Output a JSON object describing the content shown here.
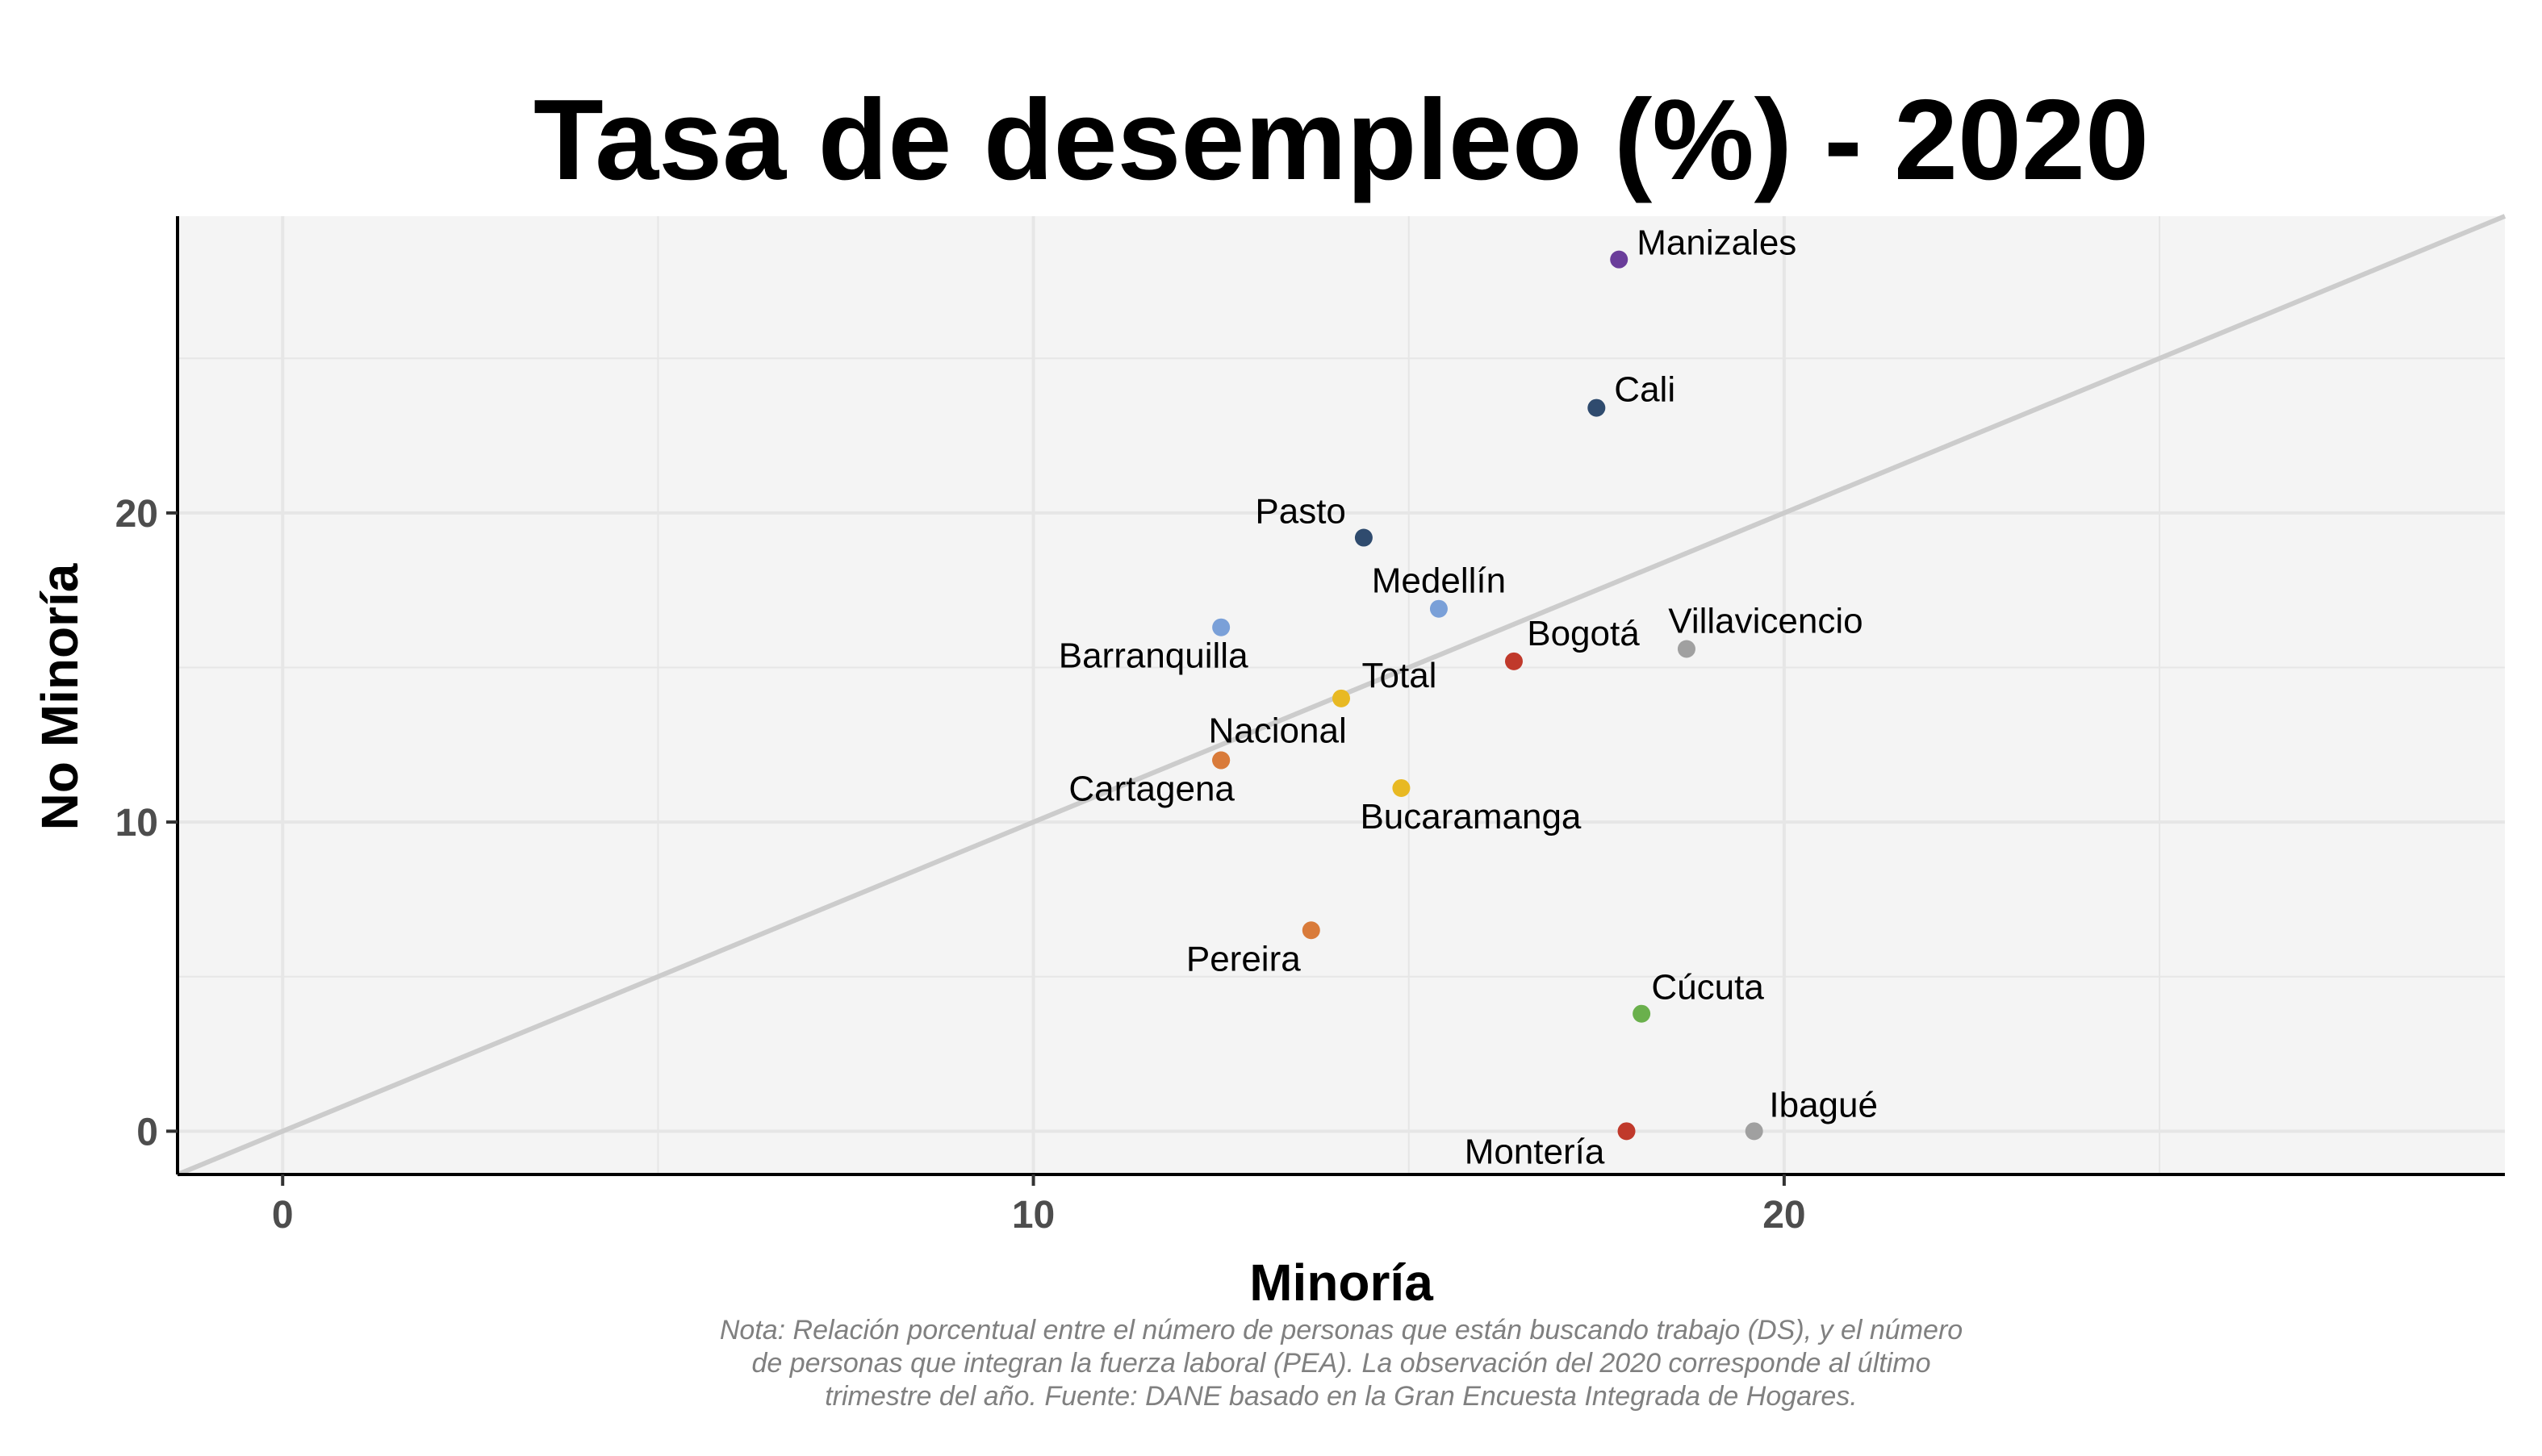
{
  "chart_data": {
    "type": "scatter",
    "title": "Tasa de desempleo (%) - 2020",
    "xlabel": "Minoría",
    "ylabel": "No Minoría",
    "xlim": [
      -1.4,
      29.6
    ],
    "ylim": [
      -1.4,
      29.6
    ],
    "x_ticks": [
      0,
      10,
      20
    ],
    "y_ticks": [
      0,
      10,
      20
    ],
    "grid": true,
    "reference_line": "y = x",
    "colors": {
      "panel_background": "#f4f4f4",
      "grid": "#e6e6e6",
      "reference_line": "#cccccc"
    },
    "points": [
      {
        "label": "Manizales",
        "x": 17.8,
        "y": 28.2,
        "color": "#6a3d9a"
      },
      {
        "label": "Cali",
        "x": 17.5,
        "y": 23.4,
        "color": "#2f4b6e"
      },
      {
        "label": "Pasto",
        "x": 14.4,
        "y": 19.2,
        "color": "#2f4b6e"
      },
      {
        "label": "Medellín",
        "x": 15.4,
        "y": 16.9,
        "color": "#7aa0d8"
      },
      {
        "label": "Barranquilla",
        "x": 12.5,
        "y": 16.3,
        "color": "#7aa0d8"
      },
      {
        "label": "Villavicencio",
        "x": 18.7,
        "y": 15.6,
        "color": "#a0a0a0"
      },
      {
        "label": "Bogotá",
        "x": 16.4,
        "y": 15.2,
        "color": "#c0392b"
      },
      {
        "label": "Total",
        "x": 14.1,
        "y": 14.0,
        "color": "#e8b923"
      },
      {
        "label": "Nacional",
        "x": 12.5,
        "y": 12.0,
        "color": "#d97b3a"
      },
      {
        "label": "Cartagena",
        "x": 12.5,
        "y": 12.0,
        "color": "#d97b3a"
      },
      {
        "label": "Bucaramanga",
        "x": 14.9,
        "y": 11.1,
        "color": "#e8b923"
      },
      {
        "label": "Pereira",
        "x": 13.7,
        "y": 6.5,
        "color": "#d97b3a"
      },
      {
        "label": "Cúcuta",
        "x": 18.1,
        "y": 3.8,
        "color": "#6ab04c"
      },
      {
        "label": "Ibagué",
        "x": 19.6,
        "y": 0.0,
        "color": "#a0a0a0"
      },
      {
        "label": "Montería",
        "x": 17.9,
        "y": 0.0,
        "color": "#c0392b"
      }
    ],
    "note": [
      "Nota: Relación porcentual entre el número de personas que están buscando trabajo (DS), y el número",
      "de personas que integran la fuerza laboral (PEA). La observación del 2020 corresponde al último",
      "trimestre del año. Fuente: DANE basado en la Gran Encuesta Integrada de Hogares."
    ]
  }
}
